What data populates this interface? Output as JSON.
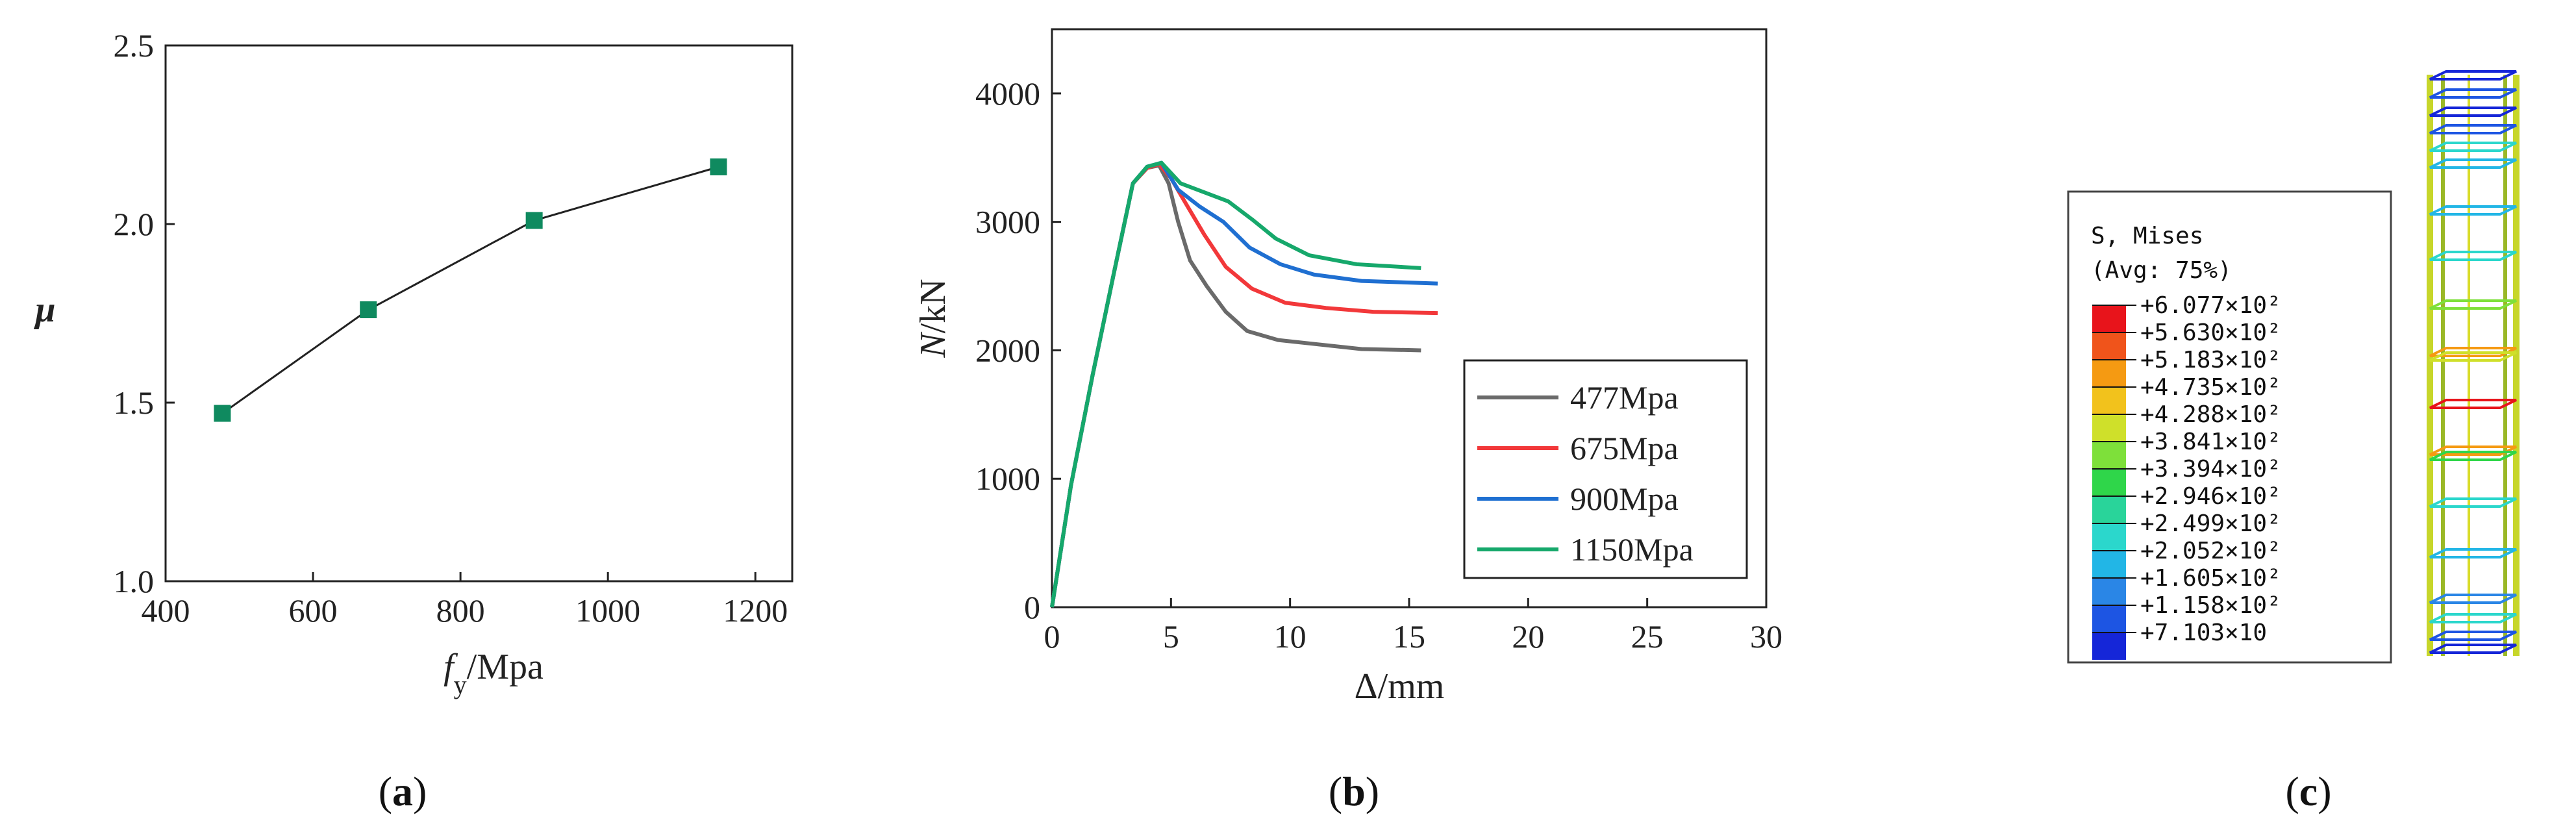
{
  "colors": {
    "marker": "#0f8a5f",
    "s477": "#6a6a6a",
    "s675": "#f2383a",
    "s900": "#1f6fd1",
    "s1150": "#16a86b"
  },
  "chart_data": [
    {
      "panel": "a",
      "type": "line",
      "xlabel_main": "f",
      "xlabel_sub": "y",
      "xlabel_unit": "/Mpa",
      "ylabel": "μ",
      "xlim": [
        400,
        1250
      ],
      "ylim": [
        1.0,
        2.5
      ],
      "xticks": [
        400,
        600,
        800,
        1000,
        1200
      ],
      "yticks": [
        1.0,
        1.5,
        2.0,
        2.5
      ],
      "ytick_labels": [
        "1.0",
        "1.5",
        "2.0",
        "2.5"
      ],
      "series": [
        {
          "name": "μ",
          "x": [
            477,
            675,
            900,
            1150
          ],
          "y": [
            1.47,
            1.76,
            2.01,
            2.16
          ]
        }
      ]
    },
    {
      "panel": "b",
      "type": "line",
      "xlabel": "Δ/mm",
      "ylabel_main": "N",
      "ylabel_unit": "/kN",
      "xlim": [
        0,
        30
      ],
      "ylim": [
        0,
        4500
      ],
      "xticks": [
        0,
        5,
        10,
        15,
        20,
        25,
        30
      ],
      "yticks": [
        0,
        1000,
        2000,
        3000,
        4000
      ],
      "legend": "right",
      "series": [
        {
          "name": "477Mpa",
          "x": [
            0,
            0.8,
            1.7,
            2.6,
            3.4,
            4.0,
            4.5,
            4.9,
            5.3,
            5.8,
            6.5,
            7.3,
            8.2,
            9.5,
            11,
            13,
            15.5
          ],
          "y": [
            0,
            950,
            1800,
            2600,
            3300,
            3420,
            3440,
            3300,
            3000,
            2700,
            2500,
            2300,
            2150,
            2080,
            2050,
            2010,
            2000
          ]
        },
        {
          "name": "675Mpa",
          "x": [
            0,
            0.8,
            1.7,
            2.6,
            3.4,
            4.0,
            4.5,
            5.0,
            5.6,
            6.4,
            7.3,
            8.4,
            9.8,
            11.5,
            13.5,
            16.2
          ],
          "y": [
            0,
            950,
            1800,
            2600,
            3300,
            3420,
            3450,
            3340,
            3150,
            2900,
            2650,
            2480,
            2370,
            2330,
            2300,
            2290
          ]
        },
        {
          "name": "900Mpa",
          "x": [
            0,
            0.8,
            1.7,
            2.6,
            3.4,
            4.0,
            4.6,
            5.3,
            6.2,
            7.2,
            8.3,
            9.6,
            11,
            13,
            16.2
          ],
          "y": [
            0,
            950,
            1800,
            2600,
            3300,
            3430,
            3460,
            3250,
            3120,
            3000,
            2800,
            2670,
            2590,
            2540,
            2520
          ]
        },
        {
          "name": "1150Mpa",
          "x": [
            0,
            0.8,
            1.7,
            2.6,
            3.4,
            4.0,
            4.6,
            5.4,
            6.4,
            7.4,
            8.4,
            9.4,
            10.8,
            12.8,
            15.5
          ],
          "y": [
            0,
            950,
            1800,
            2600,
            3300,
            3430,
            3460,
            3300,
            3230,
            3160,
            3020,
            2870,
            2740,
            2670,
            2640
          ]
        }
      ]
    },
    {
      "panel": "c",
      "type": "heatmap",
      "legend_title": "S, Mises",
      "legend_subtitle": "(Avg: 75%)",
      "legend_values": [
        "+6.077×10²",
        "+5.630×10²",
        "+5.183×10²",
        "+4.735×10²",
        "+4.288×10²",
        "+3.841×10²",
        "+3.394×10²",
        "+2.946×10²",
        "+2.499×10²",
        "+2.052×10²",
        "+1.605×10²",
        "+1.158×10²",
        "+7.103×10"
      ],
      "legend_colors": [
        "#e8141b",
        "#f0541b",
        "#f59a12",
        "#f2c21c",
        "#cfe02a",
        "#7ee03a",
        "#2fd64a",
        "#29d49a",
        "#2bd7cc",
        "#22b6e6",
        "#2a86e6",
        "#1d55e3",
        "#1526d8"
      ]
    }
  ],
  "captions": [
    "a",
    "b",
    "c"
  ]
}
